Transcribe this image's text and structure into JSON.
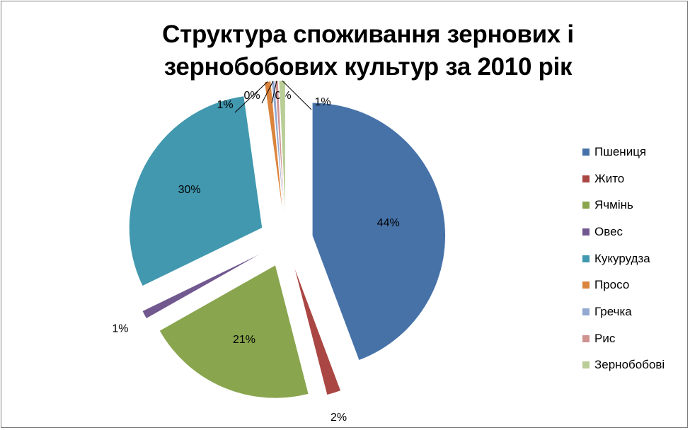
{
  "chart_data": {
    "type": "pie",
    "title_lines": [
      "Структура споживання зернових і",
      "зернобобових культур за 2010 рік"
    ],
    "categories": [
      "Пшениця",
      "Жито",
      "Ячмінь",
      "Овес",
      "Кукурудза",
      "Просо",
      "Гречка",
      "Рис",
      "Зернобобові"
    ],
    "values": [
      44,
      2,
      21,
      1,
      30,
      1,
      0,
      0,
      1
    ],
    "labels": [
      "44%",
      "2%",
      "21%",
      "1%",
      "30%",
      "1%",
      "0%",
      "0%",
      "1%"
    ],
    "colors": [
      "#4672A8",
      "#AA4643",
      "#89A54E",
      "#71588F",
      "#4198AF",
      "#DB843D",
      "#93A9CF",
      "#D19392",
      "#B9CD96"
    ],
    "legend_position": "right",
    "exploded": true
  }
}
